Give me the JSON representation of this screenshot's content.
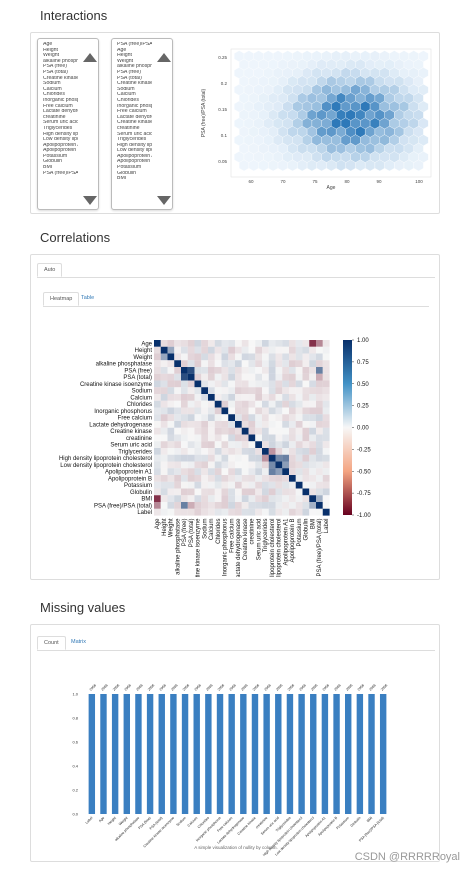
{
  "sections": {
    "interactions": "Interactions",
    "correlations": "Correlations",
    "missing": "Missing values"
  },
  "interactions": {
    "list_left": [
      "Age",
      "Height",
      "Weight",
      "alkaline phosph",
      "PSA (free)",
      "PSA (total)",
      "Creatine kinase",
      "Sodium",
      "Calcium",
      "Chlorides",
      "Inorganic phosp",
      "Free calcium",
      "Lactate dehydro",
      "creatinine",
      "Serum uric acid",
      "Triglycerides",
      "High density lipo",
      "Low density lipo",
      "Apolipoprotein A",
      "Apolipoprotein B",
      "Potassium",
      "Globulin",
      "BMI",
      "PSA (free)/PSA"
    ],
    "list_right": [
      "PSA (free)/PSA",
      "Age",
      "Height",
      "Weight",
      "alkaline phosph",
      "PSA (free)",
      "PSA (total)",
      "Creatine kinase",
      "Sodium",
      "Calcium",
      "Chlorides",
      "Inorganic phosp",
      "Free calcium",
      "Lactate dehydro",
      "Creatine kinase",
      "creatinine",
      "Serum uric acid",
      "Triglycerides",
      "High density lipo",
      "Low density lipo",
      "Apolipoprotein A",
      "Apolipoprotein B",
      "Potassium",
      "Globulin",
      "BMI"
    ],
    "hexbin": {
      "ylabel": "PSA (free)/PSA (total)",
      "xlabel": "Age",
      "xticks": [
        "60",
        "70",
        "75",
        "80",
        "90",
        "100"
      ],
      "yticks": [
        "0.25",
        "0.2",
        "0.15",
        "0.1",
        "0.05"
      ]
    }
  },
  "correlations": {
    "outer_tab": "Auto",
    "tabs": [
      "Heatmap",
      "Table"
    ],
    "variables": [
      "Age",
      "Height",
      "Weight",
      "alkaline phosphatase",
      "PSA (free)",
      "PSA (total)",
      "Creatine kinase isoenzyme",
      "Sodium",
      "Calcium",
      "Chlorides",
      "Inorganic phosphorus",
      "Free calcium",
      "Lactate dehydrogenase",
      "Creatine kinase",
      "creatinine",
      "Serum uric acid",
      "Triglycerides",
      "High density lipoprotein cholesterol",
      "Low density lipoprotein cholesterol",
      "Apolipoprotein A1",
      "Apolipoprotein B",
      "Potassium",
      "Globulin",
      "BMI",
      "PSA (free)/PSA (total)",
      "Label"
    ],
    "colorbar_ticks": [
      "1.00",
      "0.75",
      "0.50",
      "0.25",
      "0.00",
      "-0.25",
      "-0.50",
      "-0.75",
      "-1.00"
    ],
    "colors": {
      "pos": "#08306b",
      "neg": "#b2182b",
      "mid": "#f7f7f7"
    }
  },
  "missing": {
    "tabs": [
      "Count",
      "Matrix"
    ],
    "top_count": "2956",
    "yticks": [
      "1.0",
      "0.8",
      "0.6",
      "0.4",
      "0.2",
      "0.0"
    ],
    "columns": [
      "Label",
      "Age",
      "Height",
      "Weight",
      "alkaline phosphatase",
      "PSA (free)",
      "PSA (total)",
      "Creatine kinase isoenzyme",
      "Sodium",
      "Calcium",
      "Chlorides",
      "Inorganic phosphorus",
      "Free calcium",
      "Lactate dehydrogenase",
      "Creatine kinase",
      "creatinine",
      "Serum uric acid",
      "Triglycerides",
      "High density lipoprotein cholesterol",
      "Low density lipoprotein cholesterol",
      "Apolipoprotein A1",
      "Apolipoprotein B",
      "Potassium",
      "Globulin",
      "BMI",
      "PSA (free)/PSA (total)"
    ],
    "caption": "A simple visualization of nullity by column.",
    "bar_color": "#3a7fc1"
  },
  "chart_data": [
    {
      "type": "bar",
      "categories": [
        "Label",
        "Age",
        "Height",
        "Weight",
        "alkaline phosphatase",
        "PSA (free)",
        "PSA (total)",
        "Creatine kinase isoenzyme",
        "Sodium",
        "Calcium",
        "Chlorides",
        "Inorganic phosphorus",
        "Free calcium",
        "Lactate dehydrogenase",
        "Creatine kinase",
        "creatinine",
        "Serum uric acid",
        "Triglycerides",
        "High density lipoprotein cholesterol",
        "Low density lipoprotein cholesterol",
        "Apolipoprotein A1",
        "Apolipoprotein B",
        "Potassium",
        "Globulin",
        "BMI",
        "PSA (free)/PSA (total)"
      ],
      "values": [
        1,
        1,
        1,
        1,
        1,
        1,
        1,
        1,
        1,
        1,
        1,
        1,
        1,
        1,
        1,
        1,
        1,
        1,
        1,
        1,
        1,
        1,
        1,
        1,
        1,
        1
      ],
      "ylim": [
        0,
        1
      ]
    }
  ],
  "watermark": "CSDN @RRRRRoyal"
}
